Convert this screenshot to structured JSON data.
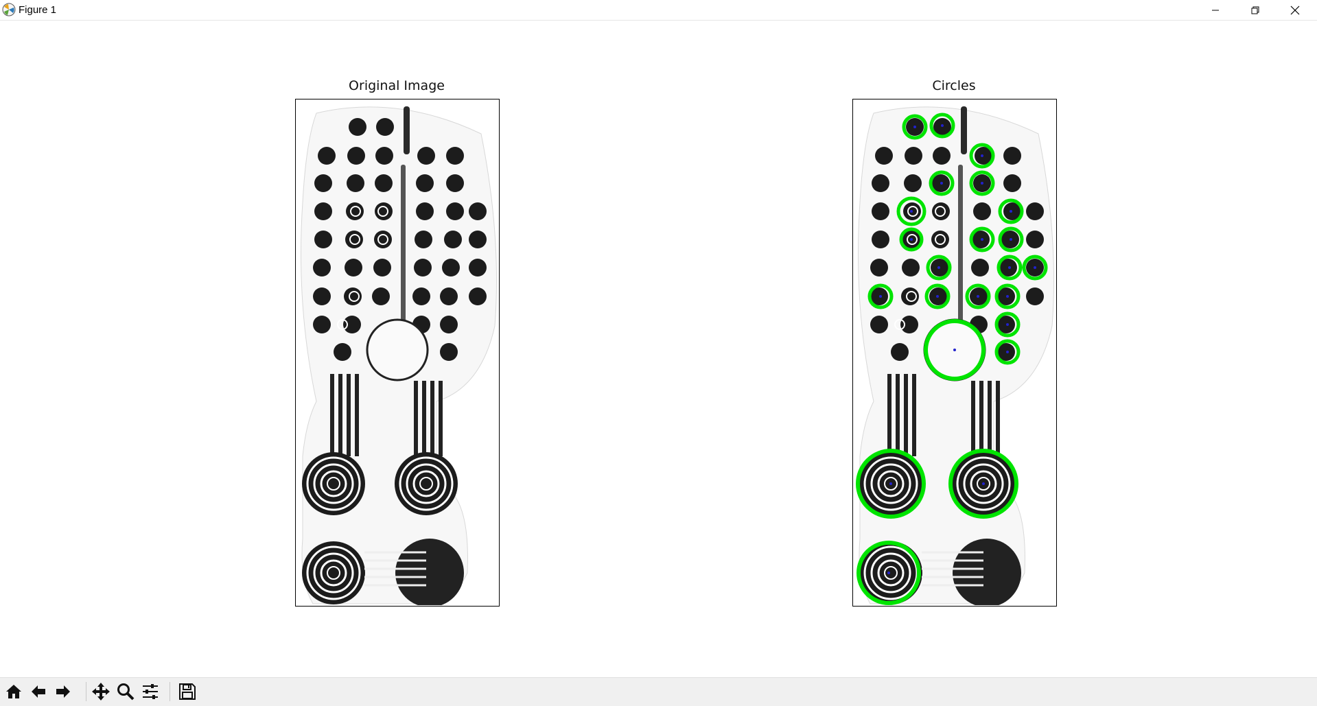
{
  "window": {
    "title": "Figure 1",
    "icon": "matplotlib-icon",
    "controls": [
      "minimize-icon",
      "restore-icon",
      "close-icon"
    ]
  },
  "figure": {
    "subplots": [
      {
        "title": "Original Image"
      },
      {
        "title": "Circles"
      }
    ],
    "circle_color": "#00e400",
    "center_color": "#2222cc"
  },
  "toolbar": {
    "buttons": [
      "home-icon",
      "back-icon",
      "forward-icon",
      "pan-icon",
      "zoom-icon",
      "configure-subplots-icon",
      "save-icon"
    ]
  }
}
